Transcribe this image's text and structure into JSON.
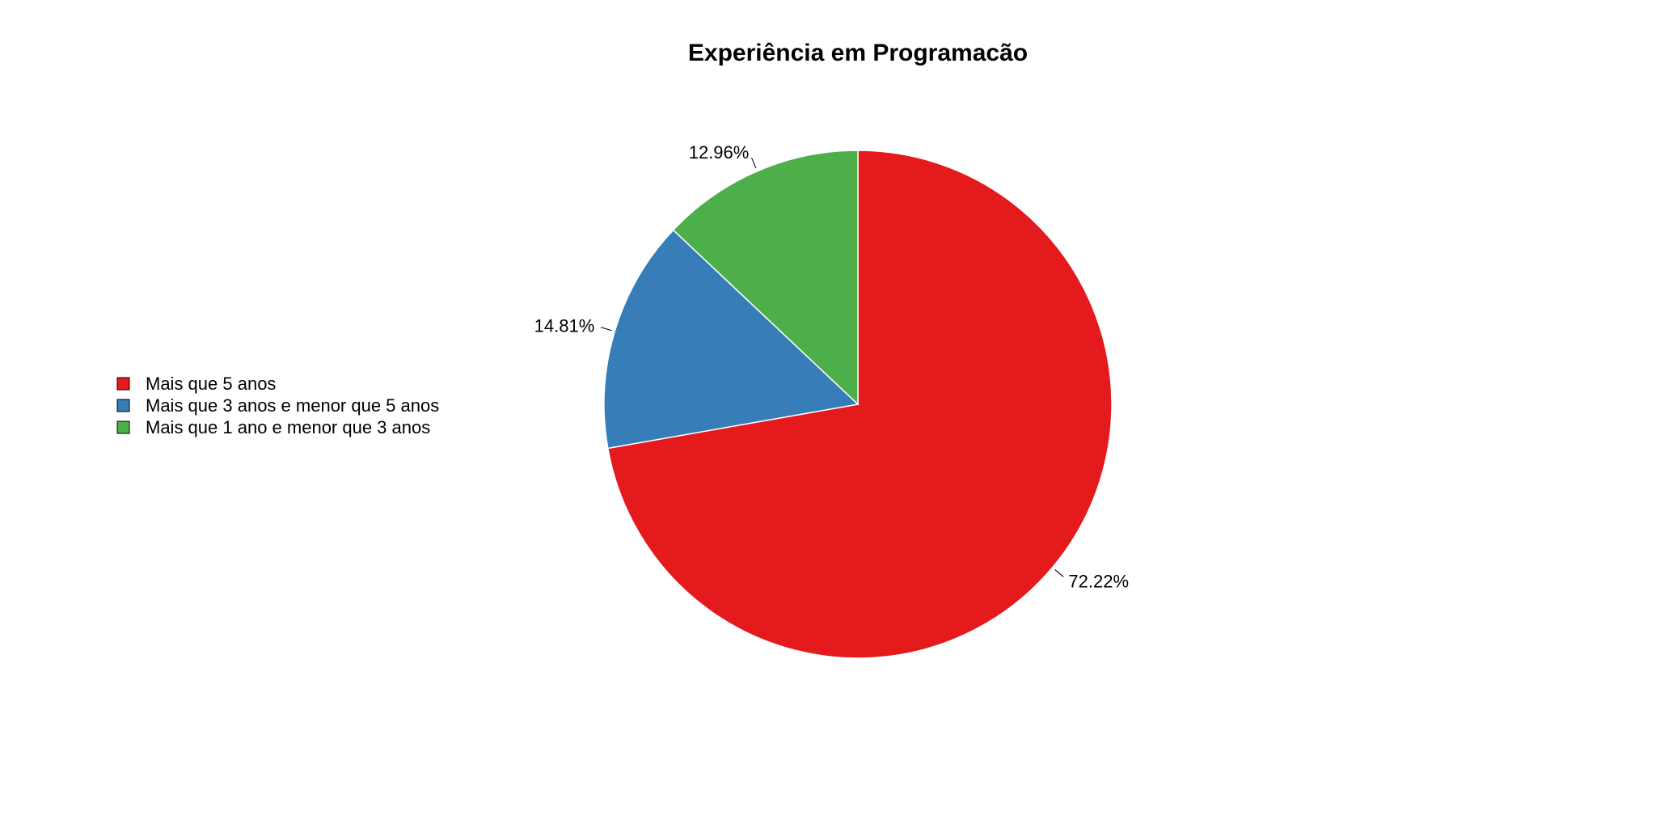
{
  "chart_data": {
    "type": "pie",
    "title": "Experiência em Programacão",
    "slices": [
      {
        "name": "Mais que 5 anos",
        "value": 72.22,
        "label": "72.22%",
        "color": "#E41A1C"
      },
      {
        "name": "Mais que 3 anos e menor que 5 anos",
        "value": 14.81,
        "label": "14.81%",
        "color": "#377EB8"
      },
      {
        "name": "Mais que 1 ano e menor que 3 anos",
        "value": 12.96,
        "label": "12.96%",
        "color": "#4DAF4A"
      }
    ],
    "start_angle": "12 o'clock",
    "direction": "clockwise",
    "legend_position": "left"
  }
}
